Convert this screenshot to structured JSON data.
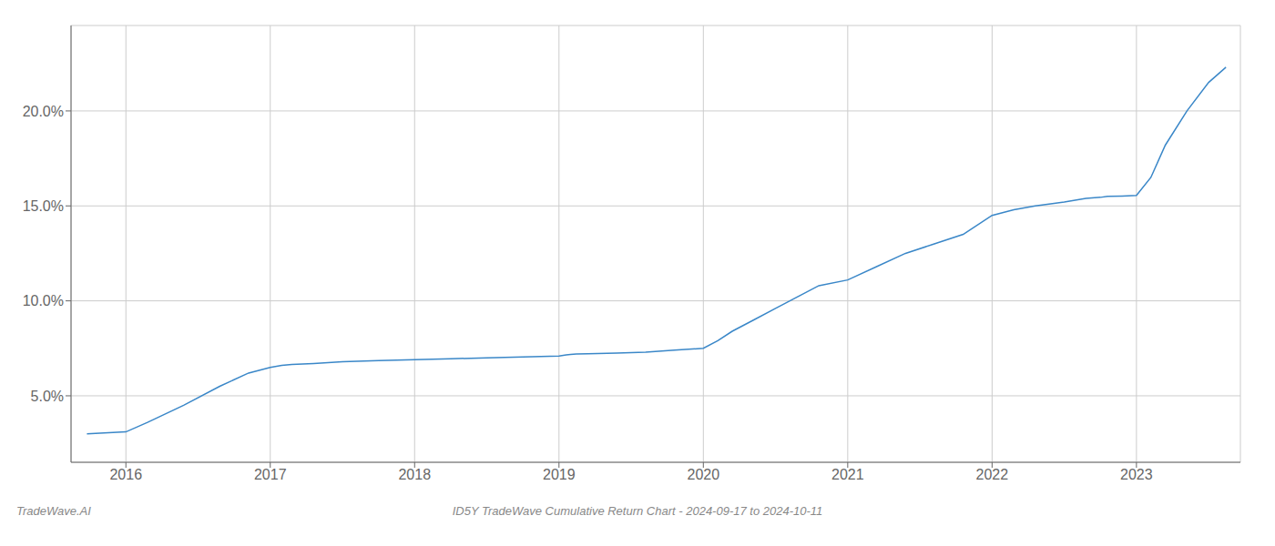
{
  "chart_data": {
    "type": "line",
    "title": "ID5Y TradeWave Cumulative Return Chart - 2024-09-17 to 2024-10-11",
    "annotations": [
      "TradeWave.AI"
    ],
    "x": [
      2015.73,
      2015.85,
      2016.0,
      2016.15,
      2016.4,
      2016.65,
      2016.85,
      2017.0,
      2017.08,
      2017.15,
      2017.3,
      2017.5,
      2017.75,
      2018.0,
      2018.25,
      2018.5,
      2018.75,
      2019.0,
      2019.05,
      2019.08,
      2019.12,
      2019.2,
      2019.4,
      2019.6,
      2019.8,
      2020.0,
      2020.1,
      2020.2,
      2020.35,
      2020.5,
      2020.65,
      2020.8,
      2021.0,
      2021.2,
      2021.4,
      2021.6,
      2021.8,
      2022.0,
      2022.15,
      2022.3,
      2022.5,
      2022.65,
      2022.75,
      2022.8,
      2022.9,
      2023.0,
      2023.1,
      2023.2,
      2023.35,
      2023.5,
      2023.62
    ],
    "values": [
      3.0,
      3.05,
      3.1,
      3.6,
      4.5,
      5.5,
      6.2,
      6.5,
      6.6,
      6.65,
      6.7,
      6.8,
      6.85,
      6.9,
      6.95,
      7.0,
      7.05,
      7.1,
      7.15,
      7.18,
      7.2,
      7.22,
      7.25,
      7.3,
      7.4,
      7.5,
      7.9,
      8.4,
      9.0,
      9.6,
      10.2,
      10.8,
      11.1,
      11.8,
      12.5,
      13.0,
      13.5,
      14.5,
      14.8,
      15.0,
      15.2,
      15.4,
      15.45,
      15.5,
      15.52,
      15.55,
      16.5,
      18.2,
      20.0,
      21.5,
      22.3
    ],
    "color": "#3a87c8",
    "xlim": [
      2015.62,
      2023.72
    ],
    "ylim": [
      1.5,
      24.5
    ],
    "xticks": [
      2016,
      2017,
      2018,
      2019,
      2020,
      2021,
      2022,
      2023
    ],
    "yticks": [
      {
        "value": 5.0,
        "label": "5.0%"
      },
      {
        "value": 10.0,
        "label": "10.0%"
      },
      {
        "value": 15.0,
        "label": "15.0%"
      },
      {
        "value": 20.0,
        "label": "20.0%"
      }
    ],
    "grid": true
  }
}
